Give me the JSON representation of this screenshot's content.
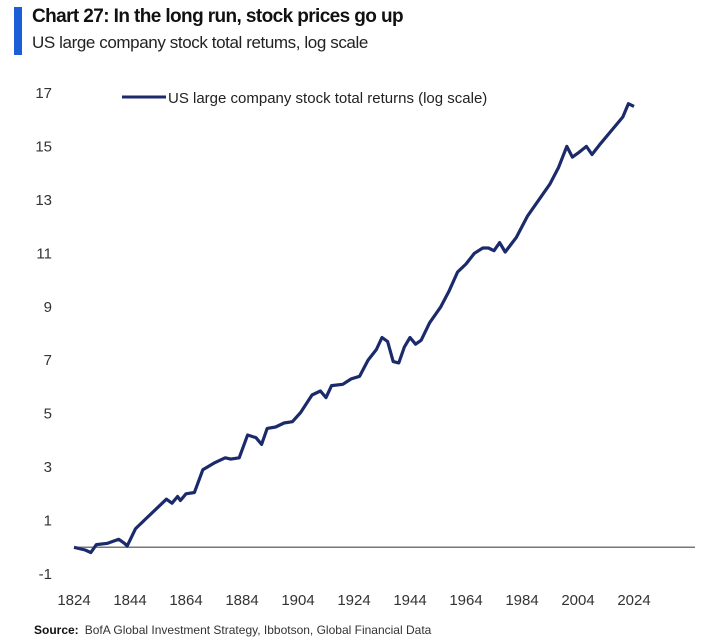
{
  "title": "Chart 27: In the long run, stock prices go up",
  "subtitle": "US large  company stock total retums, log scale",
  "source_label": "Source:",
  "source_text": "BofA Global Investment Strategy, Ibbotson,  Global Financial Data",
  "colors": {
    "line": "#1b2a6b",
    "accent": "#1a5fd6",
    "zero_line": "#777777"
  },
  "chart_data": {
    "type": "line",
    "title": "Chart 27: In the long run, stock prices go up",
    "xlabel": "",
    "ylabel": "",
    "xlim": [
      1824,
      2024
    ],
    "ylim": [
      -1,
      17
    ],
    "grid": false,
    "legend": "top",
    "x_ticks": [
      "1824",
      "1844",
      "1864",
      "1884",
      "1904",
      "1924",
      "1944",
      "1964",
      "1984",
      "2004",
      "2024"
    ],
    "y_ticks": [
      "-1",
      "1",
      "3",
      "5",
      "7",
      "9",
      "11",
      "13",
      "15",
      "17"
    ],
    "series": [
      {
        "name": "US large company stock total returns (log scale)",
        "x": [
          1824,
          1828,
          1830,
          1832,
          1836,
          1840,
          1842,
          1843,
          1846,
          1850,
          1854,
          1857,
          1859,
          1861,
          1862,
          1864,
          1867,
          1870,
          1874,
          1878,
          1880,
          1883,
          1886,
          1889,
          1891,
          1893,
          1896,
          1899,
          1902,
          1905,
          1909,
          1912,
          1914,
          1916,
          1920,
          1923,
          1926,
          1929,
          1932,
          1934,
          1936,
          1938,
          1940,
          1942,
          1944,
          1946,
          1948,
          1951,
          1955,
          1958,
          1961,
          1964,
          1967,
          1970,
          1972,
          1974,
          1976,
          1978,
          1982,
          1986,
          1990,
          1994,
          1997,
          2000,
          2002,
          2004,
          2007,
          2009,
          2012,
          2016,
          2020,
          2022,
          2024
        ],
        "values": [
          0,
          -0.1,
          -0.2,
          0.1,
          0.15,
          0.3,
          0.15,
          0.05,
          0.7,
          1.1,
          1.5,
          1.8,
          1.65,
          1.9,
          1.75,
          2.0,
          2.05,
          2.9,
          3.15,
          3.35,
          3.3,
          3.35,
          4.2,
          4.1,
          3.85,
          4.45,
          4.5,
          4.65,
          4.7,
          5.05,
          5.7,
          5.85,
          5.6,
          6.05,
          6.1,
          6.3,
          6.4,
          7.0,
          7.4,
          7.85,
          7.7,
          6.95,
          6.9,
          7.5,
          7.85,
          7.6,
          7.75,
          8.4,
          9.0,
          9.6,
          10.3,
          10.6,
          11.0,
          11.2,
          11.2,
          11.1,
          11.4,
          11.05,
          11.6,
          12.4,
          13.0,
          13.6,
          14.2,
          15.0,
          14.6,
          14.75,
          15.0,
          14.7,
          15.1,
          15.6,
          16.1,
          16.6,
          16.5
        ]
      }
    ]
  }
}
